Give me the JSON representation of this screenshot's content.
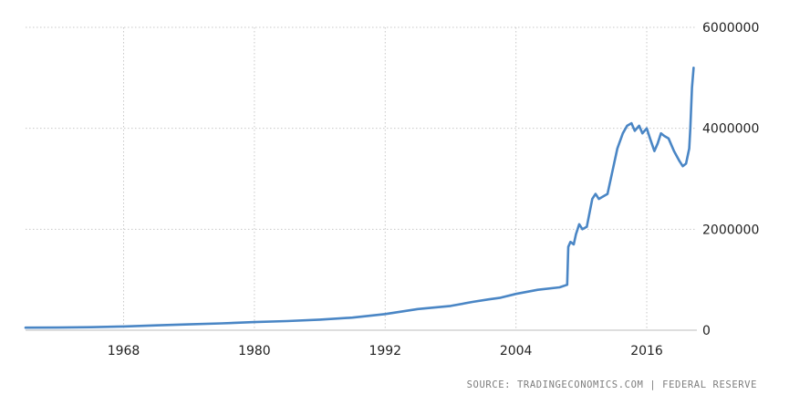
{
  "chart_data": {
    "type": "line",
    "title": "",
    "xlabel": "",
    "ylabel": "",
    "xlim": [
      1959.0,
      2020.6
    ],
    "ylim": [
      0,
      6000000
    ],
    "x_ticks": [
      1968,
      1980,
      1992,
      2004,
      2016
    ],
    "x_tick_labels": [
      "1968",
      "1980",
      "1992",
      "2004",
      "2016"
    ],
    "y_ticks": [
      0,
      2000000,
      4000000,
      6000000
    ],
    "y_tick_labels": [
      "0",
      "2000000",
      "4000000",
      "6000000"
    ],
    "grid": true,
    "y_axis_side": "right",
    "line_color": "#4a86c5",
    "grid_color": "#c8c8c8",
    "series": [
      {
        "name": "",
        "x": [
          1959.0,
          1962.0,
          1965.0,
          1968.0,
          1971.0,
          1974.0,
          1977.0,
          1980.0,
          1983.0,
          1986.0,
          1989.0,
          1992.0,
          1995.0,
          1998.0,
          2000.0,
          2001.5,
          2002.5,
          2004.0,
          2006.0,
          2008.0,
          2008.7,
          2008.8,
          2009.0,
          2009.3,
          2009.5,
          2009.8,
          2010.1,
          2010.5,
          2011.0,
          2011.3,
          2011.6,
          2012.0,
          2012.4,
          2012.8,
          2013.3,
          2013.8,
          2014.2,
          2014.6,
          2014.9,
          2015.3,
          2015.6,
          2016.0,
          2016.3,
          2016.7,
          2017.0,
          2017.3,
          2017.6,
          2018.0,
          2018.5,
          2019.0,
          2019.3,
          2019.6,
          2019.9,
          2020.0,
          2020.15,
          2020.3
        ],
        "y": [
          50000,
          52000,
          60000,
          75000,
          95000,
          115000,
          135000,
          160000,
          180000,
          210000,
          250000,
          320000,
          420000,
          480000,
          560000,
          610000,
          640000,
          720000,
          800000,
          850000,
          900000,
          1650000,
          1750000,
          1700000,
          1900000,
          2100000,
          2000000,
          2050000,
          2600000,
          2700000,
          2600000,
          2650000,
          2700000,
          3100000,
          3600000,
          3900000,
          4050000,
          4100000,
          3950000,
          4050000,
          3900000,
          4000000,
          3800000,
          3550000,
          3700000,
          3900000,
          3850000,
          3800000,
          3550000,
          3350000,
          3250000,
          3300000,
          3600000,
          4000000,
          4800000,
          5200000
        ]
      }
    ]
  },
  "source_text": "SOURCE: TRADINGECONOMICS.COM | FEDERAL RESERVE"
}
